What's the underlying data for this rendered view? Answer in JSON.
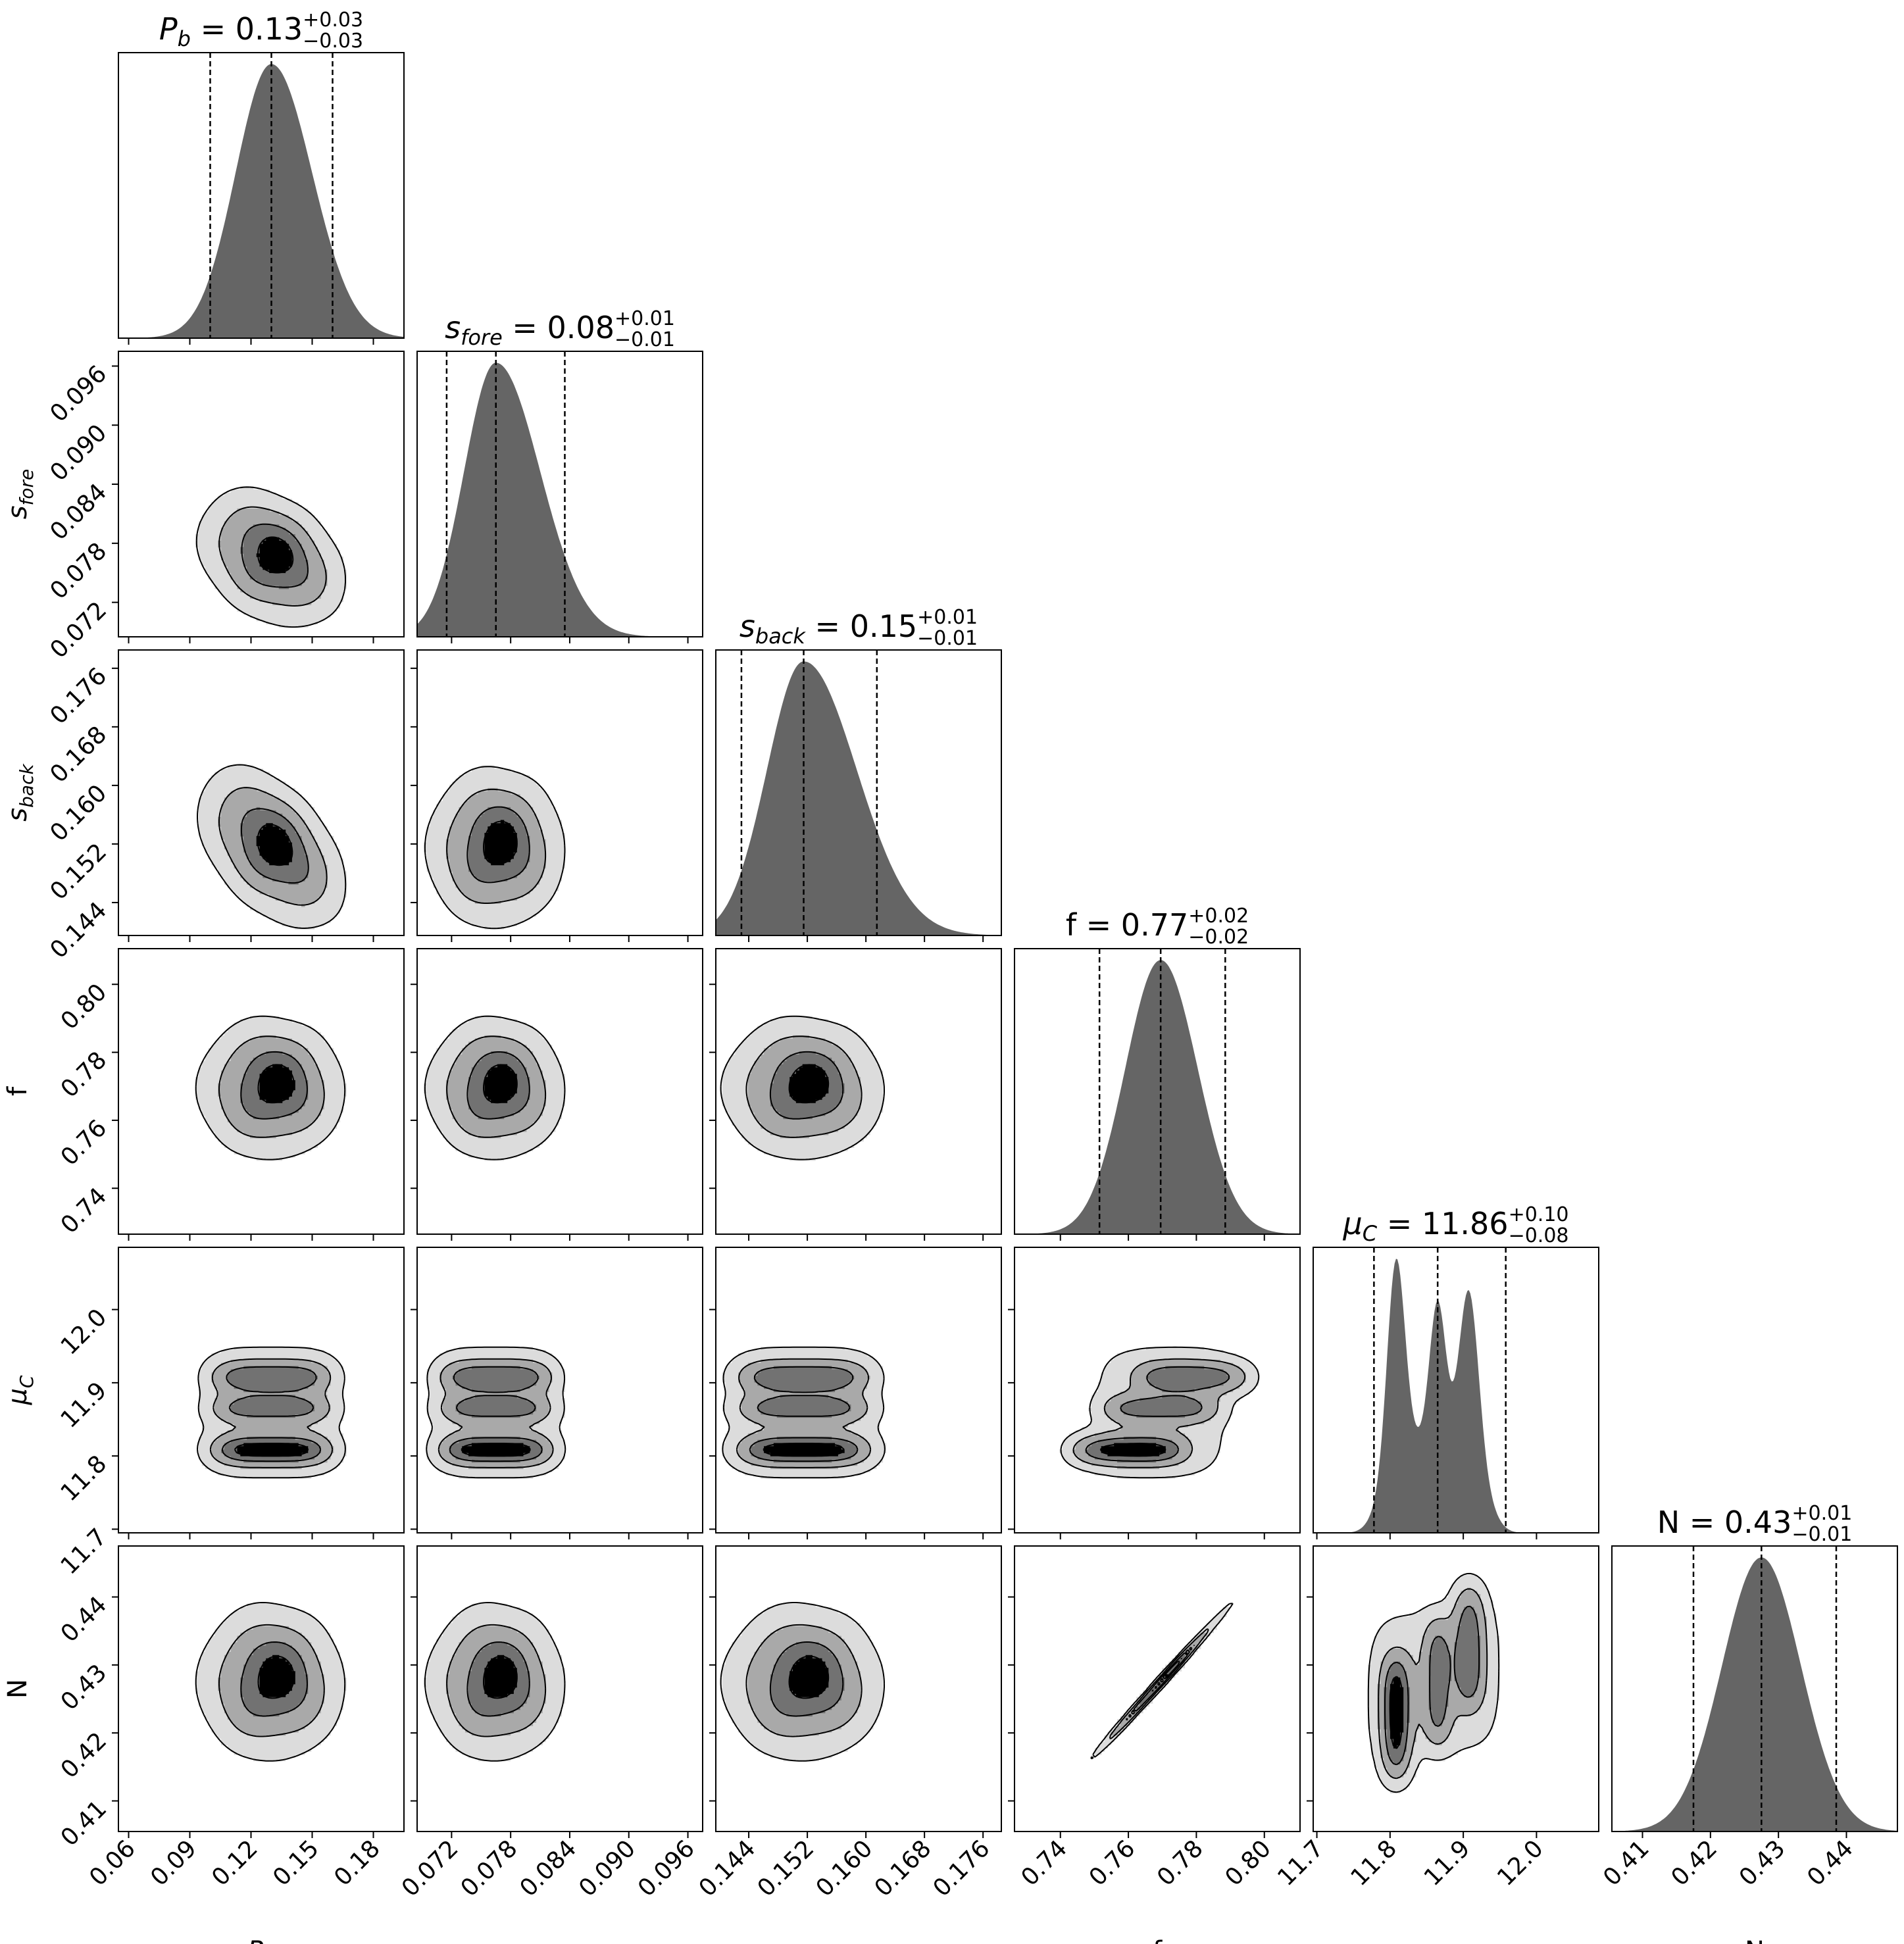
{
  "chart_data": {
    "type": "corner",
    "parameters": [
      {
        "label": "P",
        "sub": "b",
        "italic": true,
        "median": "0.13",
        "plus": "+0.03",
        "minus": "−0.03",
        "median_value": 0.13,
        "lo_value": 0.1,
        "hi_value": 0.16,
        "range": [
          0.055,
          0.195
        ],
        "ticks": [
          "0.06",
          "0.09",
          "0.12",
          "0.15",
          "0.18"
        ],
        "tick_values": [
          0.06,
          0.09,
          0.12,
          0.15,
          0.18
        ],
        "sd": 0.018,
        "skew": 0.3
      },
      {
        "label": "s",
        "sub": "fore",
        "italic": true,
        "median": "0.08",
        "plus": "+0.01",
        "minus": "−0.01",
        "median_value": 0.0765,
        "lo_value": 0.0715,
        "hi_value": 0.0835,
        "range": [
          0.0685,
          0.0975
        ],
        "ticks": [
          "0.072",
          "0.078",
          "0.084",
          "0.090",
          "0.096"
        ],
        "tick_values": [
          0.072,
          0.078,
          0.084,
          0.09,
          0.096
        ],
        "sd": 0.0035,
        "skew": 0.8
      },
      {
        "label": "s",
        "sub": "back",
        "italic": true,
        "median": "0.15",
        "plus": "+0.01",
        "minus": "−0.01",
        "median_value": 0.1515,
        "lo_value": 0.143,
        "hi_value": 0.1615,
        "range": [
          0.1395,
          0.1785
        ],
        "ticks": [
          "0.144",
          "0.152",
          "0.160",
          "0.168",
          "0.176"
        ],
        "tick_values": [
          0.144,
          0.152,
          0.16,
          0.168,
          0.176
        ],
        "sd": 0.0055,
        "skew": 0.9
      },
      {
        "label": "f",
        "sub": "",
        "italic": false,
        "median": "0.77",
        "plus": "+0.02",
        "minus": "−0.02",
        "median_value": 0.7695,
        "lo_value": 0.7515,
        "hi_value": 0.7885,
        "range": [
          0.7265,
          0.8105
        ],
        "ticks": [
          "0.74",
          "0.76",
          "0.78",
          "0.80"
        ],
        "tick_values": [
          0.74,
          0.76,
          0.78,
          0.8
        ],
        "sd": 0.0105,
        "skew": 0.1
      },
      {
        "label": "μ",
        "sub": "C",
        "italic": true,
        "median": "11.86",
        "plus": "+0.10",
        "minus": "−0.08",
        "median_value": 11.865,
        "lo_value": 11.778,
        "hi_value": 11.958,
        "range": [
          11.695,
          12.085
        ],
        "ticks": [
          "11.7",
          "11.8",
          "11.9",
          "12.0"
        ],
        "tick_values": [
          11.7,
          11.8,
          11.9,
          12.0
        ],
        "sd": 0.05,
        "skew": 0
      },
      {
        "label": "N",
        "sub": "",
        "italic": false,
        "median": "0.43",
        "plus": "+0.01",
        "minus": "−0.01",
        "median_value": 0.4275,
        "lo_value": 0.4175,
        "hi_value": 0.4385,
        "range": [
          0.4055,
          0.4475
        ],
        "ticks": [
          "0.41",
          "0.42",
          "0.43",
          "0.44"
        ],
        "tick_values": [
          0.41,
          0.42,
          0.43,
          0.44
        ],
        "sd": 0.0058,
        "skew": 0
      }
    ],
    "mu_modes": [
      {
        "center": 11.808,
        "sd": 0.012,
        "weight": 1.0
      },
      {
        "center": 11.865,
        "sd": 0.011,
        "weight": 0.7
      },
      {
        "center": 11.908,
        "sd": 0.013,
        "weight": 0.82
      }
    ],
    "correlations": {
      "P_b-s_fore": -0.3,
      "P_b-s_back": -0.45,
      "f-N": 0.995
    },
    "density_levels": 4,
    "colors": {
      "hist_fill": "#656565",
      "contour_fills": [
        "#dcdcdc",
        "#a9a9a9",
        "#727272",
        "#000000"
      ],
      "line": "#000000"
    }
  }
}
